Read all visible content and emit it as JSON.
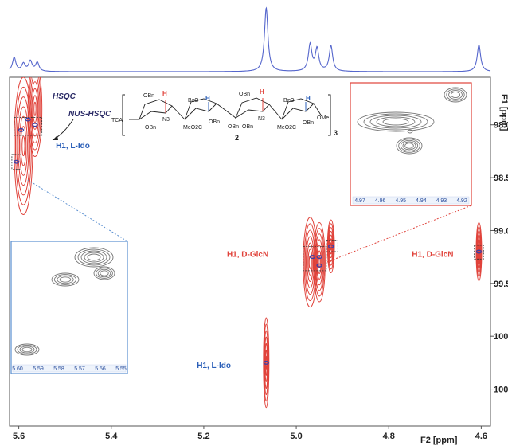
{
  "chart_data": {
    "type": "heatmap",
    "xlabel": "F2 [ppm]",
    "ylabel": "F1 [ppm]",
    "x_reversed": true,
    "y_reversed": true,
    "xlim": [
      5.62,
      4.58
    ],
    "ylim": [
      97.55,
      100.85
    ],
    "x_ticks": [
      "5.6",
      "5.4",
      "5.2",
      "5.0",
      "4.8",
      "4.6"
    ],
    "x_tick_values": [
      5.6,
      5.4,
      5.2,
      5.0,
      4.8,
      4.6
    ],
    "y_ticks": [
      "98.0",
      "98.5",
      "99.0",
      "99.5",
      "100.0",
      "100.5"
    ],
    "y_tick_values": [
      98.0,
      98.5,
      99.0,
      99.5,
      100.0,
      100.5
    ],
    "projection_peaks": [
      {
        "ppm": 5.61,
        "height": 0.22
      },
      {
        "ppm": 5.59,
        "height": 0.12
      },
      {
        "ppm": 5.575,
        "height": 0.16
      },
      {
        "ppm": 5.56,
        "height": 0.14
      },
      {
        "ppm": 5.065,
        "height": 1.0
      },
      {
        "ppm": 4.97,
        "height": 0.42
      },
      {
        "ppm": 4.955,
        "height": 0.35
      },
      {
        "ppm": 4.925,
        "height": 0.4
      },
      {
        "ppm": 4.605,
        "height": 0.42
      }
    ],
    "hsqc_peaks": [
      {
        "x": 5.59,
        "y": 98.2,
        "width": 0.04,
        "height": 1.3
      },
      {
        "x": 5.565,
        "y": 97.85,
        "width": 0.03,
        "height": 0.9
      },
      {
        "x": 4.97,
        "y": 99.3,
        "width": 0.03,
        "height": 0.85
      },
      {
        "x": 4.95,
        "y": 99.3,
        "width": 0.025,
        "height": 0.75
      },
      {
        "x": 4.925,
        "y": 99.15,
        "width": 0.015,
        "height": 0.5
      },
      {
        "x": 5.065,
        "y": 100.25,
        "width": 0.012,
        "height": 0.85
      },
      {
        "x": 4.605,
        "y": 99.2,
        "width": 0.012,
        "height": 0.55
      }
    ],
    "nus_peaks": [
      {
        "x": 5.595,
        "y": 98.05
      },
      {
        "x": 5.58,
        "y": 97.95
      },
      {
        "x": 5.565,
        "y": 98.0
      },
      {
        "x": 5.605,
        "y": 98.35
      },
      {
        "x": 4.965,
        "y": 99.25
      },
      {
        "x": 4.95,
        "y": 99.25
      },
      {
        "x": 4.95,
        "y": 99.33
      },
      {
        "x": 4.925,
        "y": 99.15
      },
      {
        "x": 5.065,
        "y": 100.25
      },
      {
        "x": 4.605,
        "y": 99.2
      }
    ],
    "boxes": [
      {
        "x1": 5.61,
        "x2": 5.55,
        "y1": 97.93,
        "y2": 98.1
      },
      {
        "x1": 5.615,
        "x2": 5.595,
        "y1": 98.28,
        "y2": 98.42
      },
      {
        "x1": 4.985,
        "x2": 4.935,
        "y1": 99.15,
        "y2": 99.38
      },
      {
        "x1": 4.935,
        "x2": 4.91,
        "y1": 99.09,
        "y2": 99.2
      },
      {
        "x1": 4.615,
        "x2": 4.595,
        "y1": 99.14,
        "y2": 99.27
      }
    ],
    "annotations": [
      {
        "text": "H1, L-Ido",
        "color": "#2b5fb8",
        "x": 5.52,
        "y": 98.22
      },
      {
        "text": "H1, D-GlcN",
        "color": "#e0423a",
        "x": 5.15,
        "y": 99.25
      },
      {
        "text": "H1, D-GlcN",
        "color": "#e0423a",
        "x": 4.75,
        "y": 99.25
      },
      {
        "text": "H1, L-Ido",
        "color": "#2b5fb8",
        "x": 5.215,
        "y": 100.3
      }
    ],
    "legend": {
      "hsqc": "HSQC",
      "nus": "NUS-HSQC"
    },
    "inset_left": {
      "ticks": [
        "5.60",
        "5.59",
        "5.58",
        "5.57",
        "5.56",
        "5.55"
      ]
    },
    "inset_right": {
      "ticks": [
        "4.97",
        "4.96",
        "4.95",
        "4.94",
        "4.93",
        "4.92"
      ]
    },
    "grid": false
  },
  "structure": {
    "labels": [
      "OBn",
      "TCA",
      "N3",
      "OBn",
      "BzO",
      "MeO2C",
      "OBn",
      "OBn",
      "OBn",
      "N3",
      "OBn",
      "BzO",
      "MeO2C",
      "OBn",
      "OMe"
    ],
    "compound_number": "2",
    "repeat": "3",
    "h_red": "H",
    "h_blue": "H"
  },
  "colors": {
    "hsqc": "#e0423a",
    "nus": "#3b3fa8",
    "projection": "#5566cc",
    "inset_left_border": "#5a8fd0",
    "inset_right_border": "#e0423a",
    "box_left": "#2b5fb8",
    "box_right": "#e0423a"
  }
}
